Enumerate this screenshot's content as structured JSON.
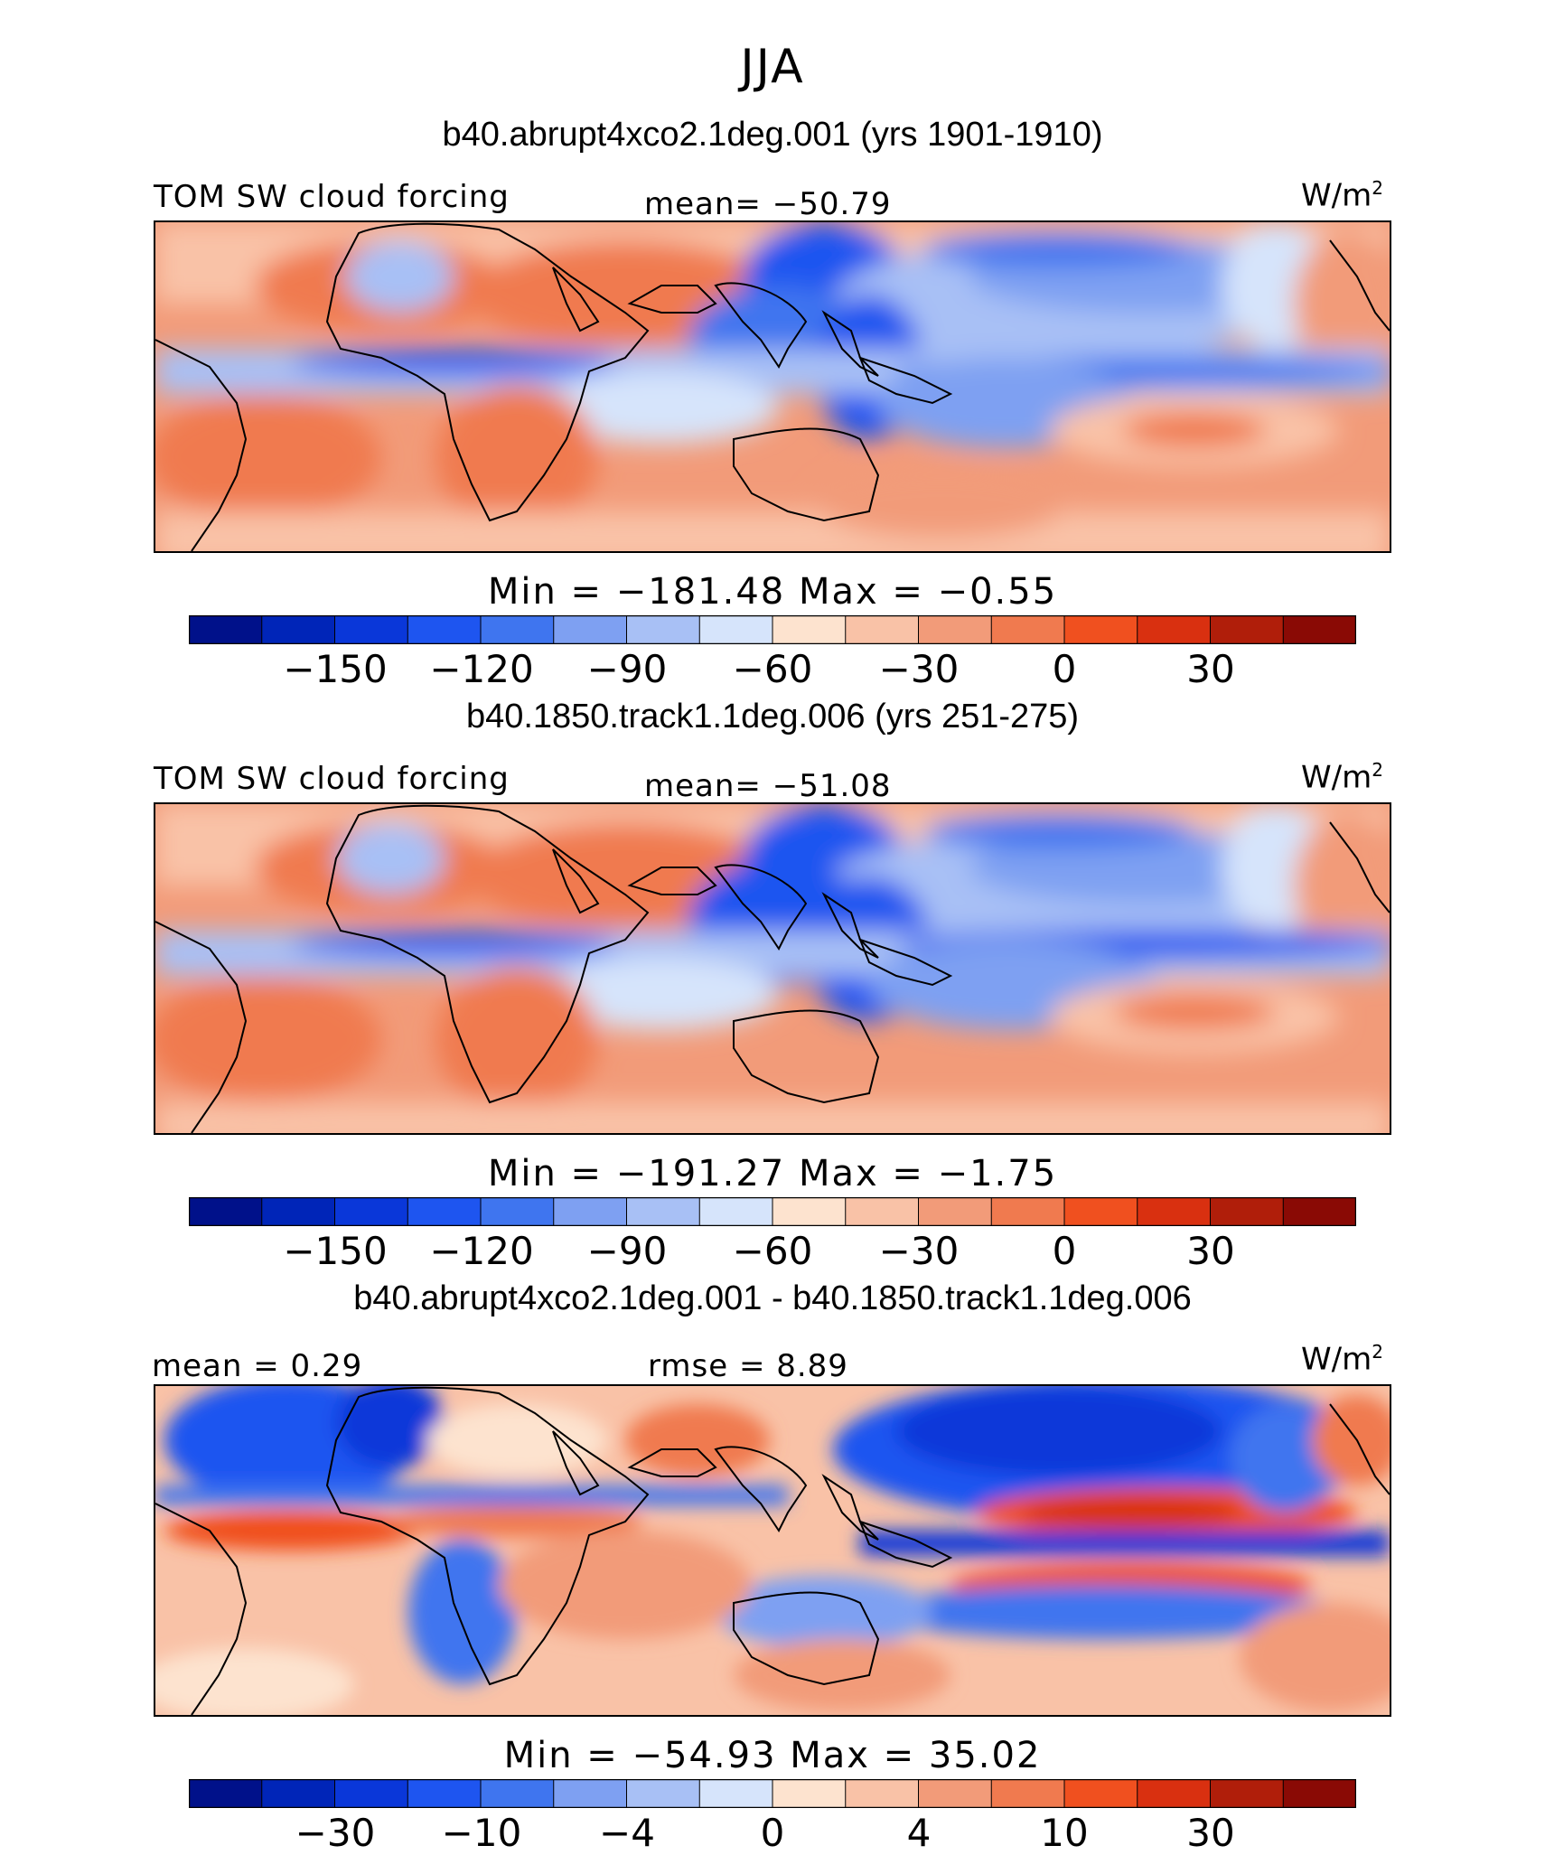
{
  "season": "JJA",
  "units": "W/m",
  "units_sup": "2",
  "panels": [
    {
      "title": "b40.abrupt4xco2.1deg.001 (yrs 1901-1910)",
      "left_label": "TOM SW cloud forcing",
      "center_label": "mean= −50.79",
      "minmax": "Min = −181.48 Max = −0.55",
      "cbar_ticks": [
        "−150",
        "−120",
        "−90",
        "−60",
        "−30",
        "0",
        "30"
      ]
    },
    {
      "title": "b40.1850.track1.1deg.006 (yrs 251-275)",
      "left_label": "TOM SW cloud forcing",
      "center_label": "mean= −51.08",
      "minmax": "Min = −191.27 Max = −1.75",
      "cbar_ticks": [
        "−150",
        "−120",
        "−90",
        "−60",
        "−30",
        "0",
        "30"
      ]
    },
    {
      "title": "b40.abrupt4xco2.1deg.001 - b40.1850.track1.1deg.006",
      "left_label": "mean = 0.29",
      "center_label": "rmse = 8.89",
      "minmax": "Min = −54.93 Max = 35.02",
      "cbar_ticks": [
        "−30",
        "−10",
        "−4",
        "0",
        "4",
        "10",
        "30"
      ]
    }
  ],
  "colors": {
    "palette": [
      "#00118a",
      "#0025b8",
      "#0a37d9",
      "#1e55f0",
      "#3f75ef",
      "#7ea0f2",
      "#a8c0f5",
      "#d6e4fb",
      "#fde3cf",
      "#f9c2a7",
      "#f29b79",
      "#f07a4f",
      "#f0501f",
      "#d93010",
      "#b01e0a",
      "#8a0a05"
    ],
    "land_outline": "#000000"
  },
  "chart_data": [
    {
      "type": "heatmap",
      "title": "b40.abrupt4xco2.1deg.001 (yrs 1901-1910)",
      "variable": "TOM SW cloud forcing",
      "units": "W/m2",
      "mean": -50.79,
      "min": -181.48,
      "max": -0.55,
      "contour_levels": [
        -165,
        -150,
        -135,
        -120,
        -105,
        -90,
        -75,
        -60,
        -45,
        -30,
        -15,
        0,
        15,
        30,
        45
      ],
      "colorbar_labels": [
        -150,
        -120,
        -90,
        -60,
        -30,
        0,
        30
      ]
    },
    {
      "type": "heatmap",
      "title": "b40.1850.track1.1deg.006 (yrs 251-275)",
      "variable": "TOM SW cloud forcing",
      "units": "W/m2",
      "mean": -51.08,
      "min": -191.27,
      "max": -1.75,
      "contour_levels": [
        -165,
        -150,
        -135,
        -120,
        -105,
        -90,
        -75,
        -60,
        -45,
        -30,
        -15,
        0,
        15,
        30,
        45
      ],
      "colorbar_labels": [
        -150,
        -120,
        -90,
        -60,
        -30,
        0,
        30
      ]
    },
    {
      "type": "heatmap",
      "title": "b40.abrupt4xco2.1deg.001 - b40.1850.track1.1deg.006",
      "variable": "difference",
      "units": "W/m2",
      "mean": 0.29,
      "rmse": 8.89,
      "min": -54.93,
      "max": 35.02,
      "contour_levels": [
        -40,
        -30,
        -20,
        -10,
        -8,
        -4,
        -2,
        0,
        2,
        4,
        8,
        10,
        20,
        30,
        40
      ],
      "colorbar_labels": [
        -30,
        -10,
        -4,
        0,
        4,
        10,
        30
      ]
    }
  ]
}
